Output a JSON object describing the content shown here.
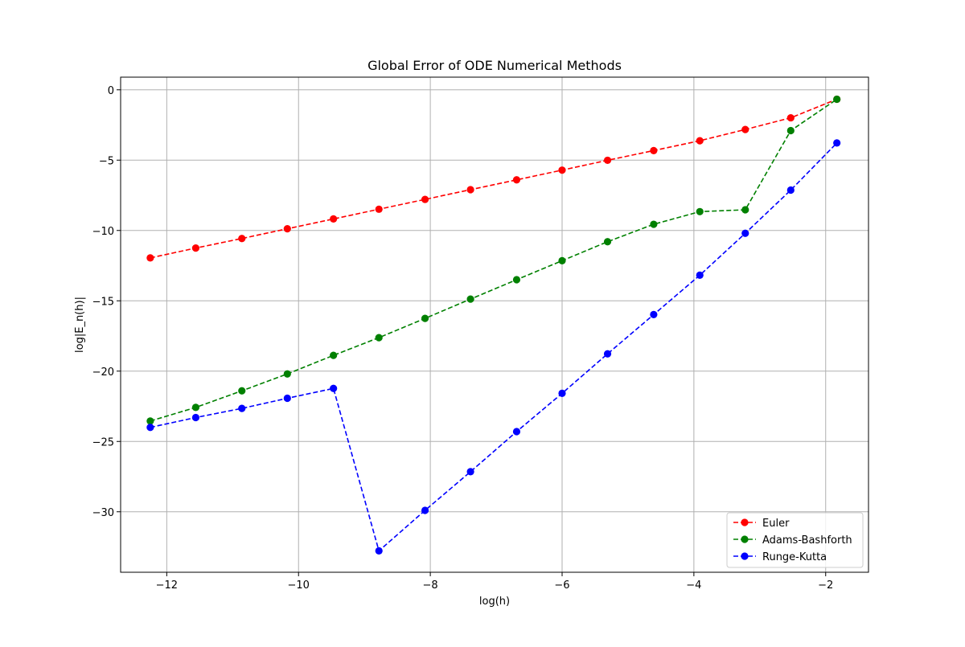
{
  "chart_data": {
    "type": "line",
    "title": "Global Error of ODE Numerical Methods",
    "xlabel": "log(h)",
    "ylabel": "log|E_n(h)|",
    "xlim": [
      -12.7,
      -1.35
    ],
    "ylim": [
      -34.3,
      0.9
    ],
    "xticks": [
      -12,
      -10,
      -8,
      -6,
      -4,
      -2
    ],
    "yticks": [
      0,
      -5,
      -10,
      -15,
      -20,
      -25,
      -30
    ],
    "xtick_labels": [
      "−12",
      "−10",
      "−8",
      "−6",
      "−4",
      "−2"
    ],
    "ytick_labels": [
      "0",
      "−5",
      "−10",
      "−15",
      "−20",
      "−25",
      "−30"
    ],
    "grid": true,
    "legend_position": "lower-right",
    "x": [
      -12.25,
      -11.56,
      -10.86,
      -10.17,
      -9.47,
      -8.78,
      -8.08,
      -7.39,
      -6.69,
      -6.0,
      -5.31,
      -4.61,
      -3.91,
      -3.22,
      -2.53,
      -1.83
    ],
    "series": [
      {
        "name": "Euler",
        "color": "#ff0000",
        "linestyle": "dashed",
        "marker": "circle",
        "values": [
          -11.95,
          -11.25,
          -10.57,
          -9.88,
          -9.18,
          -8.49,
          -7.79,
          -7.1,
          -6.4,
          -5.71,
          -5.01,
          -4.32,
          -3.62,
          -2.82,
          -1.99,
          -0.67
        ]
      },
      {
        "name": "Adams-Bashforth",
        "color": "#008000",
        "linestyle": "dashed",
        "marker": "circle",
        "values": [
          -23.55,
          -22.58,
          -21.4,
          -20.2,
          -18.88,
          -17.62,
          -16.25,
          -14.88,
          -13.5,
          -12.15,
          -10.8,
          -9.56,
          -8.66,
          -8.53,
          -2.9,
          -0.67
        ]
      },
      {
        "name": "Runge-Kutta",
        "color": "#0000ff",
        "linestyle": "dashed",
        "marker": "circle",
        "values": [
          -24.0,
          -23.3,
          -22.65,
          -21.93,
          -21.23,
          -32.78,
          -29.9,
          -27.15,
          -24.3,
          -21.58,
          -18.77,
          -15.98,
          -13.18,
          -10.2,
          -7.13,
          -3.78
        ]
      }
    ]
  }
}
